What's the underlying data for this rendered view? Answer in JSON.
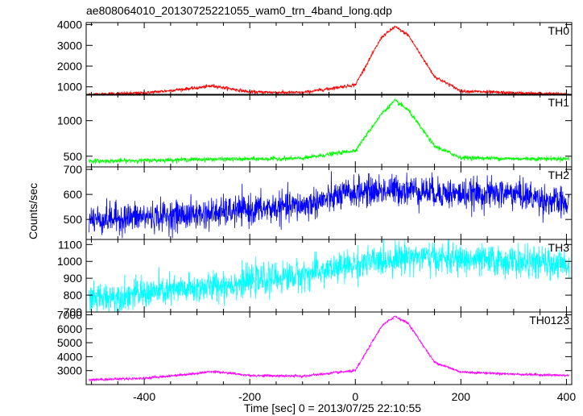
{
  "chart_data": {
    "type": "line",
    "title": "ae808064010_20130725221055_wam0_trn_4band_long.qdp",
    "xlabel": "Time [sec] 0 = 2013/07/25 22:10:55",
    "ylabel": "Counts/sec",
    "xlim": [
      -510,
      410
    ],
    "xticks": [
      -400,
      -200,
      0,
      200,
      400
    ],
    "grid": false,
    "panels": [
      {
        "name": "TH0",
        "color": "#ff0000",
        "ylim": [
          600,
          4100
        ],
        "yticks": [
          1000,
          2000,
          3000,
          4000
        ],
        "baseline": 600,
        "baseline_end": 650,
        "noise": 40,
        "bumps": [
          {
            "center": -270,
            "width": 45,
            "amp": 420
          },
          {
            "center": 75,
            "width": 55,
            "amp": 3300
          }
        ],
        "curve_x": [
          -500,
          -400,
          -300,
          -270,
          -200,
          -100,
          0,
          50,
          75,
          100,
          150,
          200,
          300,
          400
        ],
        "curve_y": [
          640,
          700,
          950,
          1050,
          750,
          720,
          1100,
          3400,
          3900,
          3500,
          1500,
          800,
          700,
          650
        ]
      },
      {
        "name": "TH1",
        "color": "#00ff00",
        "ylim": [
          350,
          1370
        ],
        "yticks": [
          500,
          1000
        ],
        "baseline": 430,
        "baseline_end": 465,
        "noise": 15,
        "bumps": [
          {
            "center": -270,
            "width": 50,
            "amp": 25
          },
          {
            "center": 75,
            "width": 55,
            "amp": 830
          }
        ],
        "curve_x": [
          -500,
          -400,
          -300,
          -200,
          -100,
          0,
          50,
          75,
          100,
          150,
          200,
          300,
          400
        ],
        "curve_y": [
          430,
          440,
          455,
          460,
          470,
          580,
          1100,
          1280,
          1150,
          640,
          480,
          465,
          465
        ]
      },
      {
        "name": "TH2",
        "color": "#0000ff",
        "ylim": [
          420,
          710
        ],
        "yticks": [
          500,
          600,
          700
        ],
        "baseline": 500,
        "baseline_end": 600,
        "noise": 30,
        "bumps": [
          {
            "center": 75,
            "width": 60,
            "amp": 20
          }
        ],
        "curve_x": [
          -500,
          -300,
          -100,
          0,
          100,
          200,
          300,
          400
        ],
        "curve_y": [
          500,
          520,
          555,
          610,
          620,
          600,
          605,
          560
        ]
      },
      {
        "name": "TH3",
        "color": "#00ffff",
        "ylim": [
          700,
          1130
        ],
        "yticks": [
          700,
          800,
          900,
          1000,
          1100
        ],
        "baseline": 780,
        "baseline_end": 980,
        "noise": 45,
        "bumps": [
          {
            "center": 75,
            "width": 60,
            "amp": 40
          }
        ],
        "curve_x": [
          -500,
          -300,
          -100,
          0,
          100,
          200,
          300,
          400
        ],
        "curve_y": [
          780,
          840,
          920,
          980,
          1030,
          1010,
          1000,
          980
        ]
      },
      {
        "name": "TH0123",
        "color": "#ff00ff",
        "ylim": [
          2000,
          7200
        ],
        "yticks": [
          3000,
          4000,
          5000,
          6000,
          7000
        ],
        "baseline": 2300,
        "baseline_end": 2650,
        "noise": 45,
        "bumps": [
          {
            "center": -270,
            "width": 45,
            "amp": 450
          },
          {
            "center": 75,
            "width": 55,
            "amp": 4150
          }
        ],
        "curve_x": [
          -500,
          -400,
          -300,
          -270,
          -200,
          -100,
          0,
          50,
          75,
          100,
          150,
          200,
          300,
          400
        ],
        "curve_y": [
          2350,
          2450,
          2800,
          2950,
          2650,
          2600,
          3000,
          6200,
          6900,
          6400,
          3600,
          2900,
          2750,
          2650
        ]
      }
    ]
  }
}
